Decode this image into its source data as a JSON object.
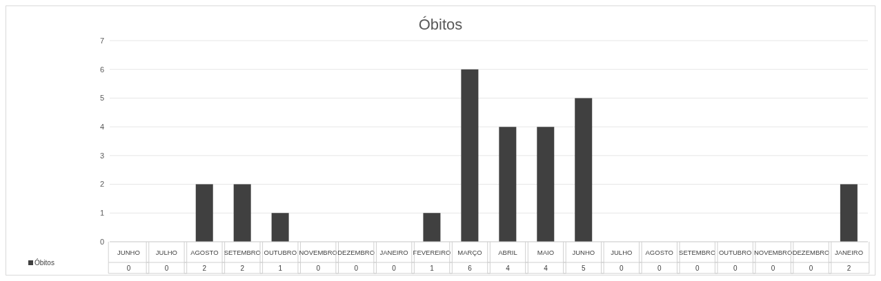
{
  "chart_data": {
    "type": "bar",
    "title": "Óbitos",
    "categories": [
      "JUNHO",
      "JULHO",
      "AGOSTO",
      "SETEMBRO",
      "OUTUBRO",
      "NOVEMBRO",
      "DEZEMBRO",
      "JANEIRO",
      "FEVEREIRO",
      "MARÇO",
      "ABRIL",
      "MAIO",
      "JUNHO",
      "JULHO",
      "AGOSTO",
      "SETEMBRO",
      "OUTUBRO",
      "NOVEMBRO",
      "DEZEMBRO",
      "JANEIRO"
    ],
    "series": [
      {
        "name": "Óbitos",
        "color": "#404040",
        "values": [
          0,
          0,
          2,
          2,
          1,
          0,
          0,
          0,
          1,
          6,
          4,
          4,
          5,
          0,
          0,
          0,
          0,
          0,
          0,
          2
        ]
      }
    ],
    "ylim": [
      0,
      7
    ],
    "yticks": [
      0,
      1,
      2,
      3,
      4,
      5,
      6,
      7
    ],
    "grid": "y",
    "legend": "bottom left",
    "data_labels": true
  }
}
